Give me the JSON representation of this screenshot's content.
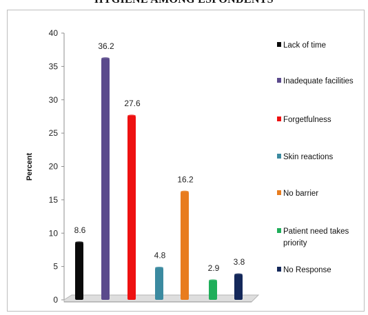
{
  "title": "HYGIENE AMONG ESPONDENTS",
  "chart_data": {
    "type": "bar",
    "title": "HYGIENE AMONG ESPONDENTS",
    "ylabel": "Percent",
    "xlabel": "",
    "ylim": [
      0,
      40
    ],
    "yticks": [
      0,
      5,
      10,
      15,
      20,
      25,
      30,
      35,
      40
    ],
    "grid": false,
    "legend_position": "right",
    "categories": [
      "Lack of time",
      "Inadequate facilities",
      "Forgetfulness",
      "Skin reactions",
      "No barrier",
      "Patient need takes priority",
      "No Response"
    ],
    "legend_labels": [
      [
        "Lack of time"
      ],
      [
        "Inadequate facilities"
      ],
      [
        "Forgetfulness"
      ],
      [
        "Skin reactions"
      ],
      [
        "No barrier"
      ],
      [
        "Patient need takes",
        "priority"
      ],
      [
        "No Response"
      ]
    ],
    "values": [
      8.6,
      36.2,
      27.6,
      4.8,
      16.2,
      2.9,
      3.8
    ],
    "value_labels": [
      "8.6",
      "36.2",
      "27.6",
      "4.8",
      "16.2",
      "2.9",
      "3.8"
    ],
    "colors": [
      "#0a0a0a",
      "#5b4a8c",
      "#ee1111",
      "#3b8aa0",
      "#e87c1e",
      "#1fae5a",
      "#14285a"
    ]
  }
}
